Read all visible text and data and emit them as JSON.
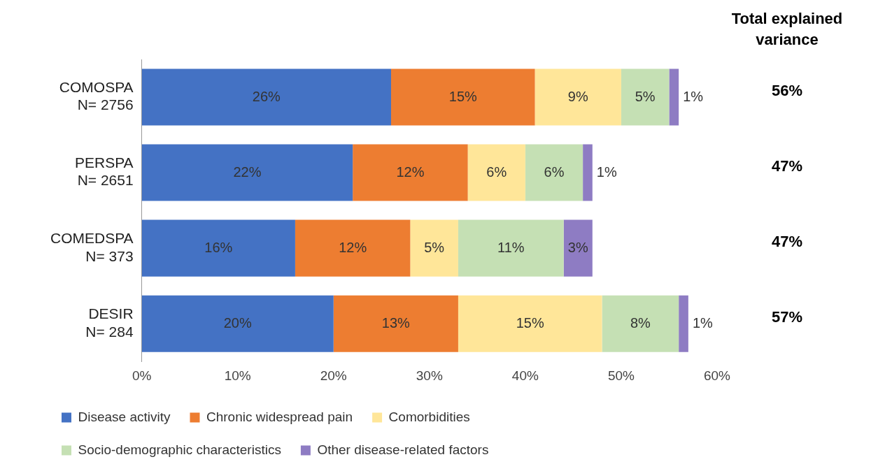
{
  "chart_data": {
    "type": "bar",
    "orientation": "horizontal",
    "stacked": true,
    "categories": [
      "COMOSPA\nN= 2756",
      "PERSPA\nN= 2651",
      "COMEDSPA\nN= 373",
      "DESIR\nN= 284"
    ],
    "series": [
      {
        "name": "Disease activity",
        "color": "#4472c4",
        "values": [
          26,
          22,
          16,
          20
        ],
        "value_labels": [
          "26%",
          "22%",
          "16%",
          "20%"
        ]
      },
      {
        "name": "Chronic widespread pain",
        "color": "#ed7d31",
        "values": [
          15,
          12,
          12,
          13
        ],
        "value_labels": [
          "15%",
          "12%",
          "12%",
          "13%"
        ]
      },
      {
        "name": "Comorbidities",
        "color": "#ffe699",
        "values": [
          9,
          6,
          5,
          15
        ],
        "value_labels": [
          "9%",
          "6%",
          "5%",
          "15%"
        ]
      },
      {
        "name": "Socio-demographic characteristics",
        "color": "#c5e0b4",
        "values": [
          5,
          6,
          11,
          8
        ],
        "value_labels": [
          "5%",
          "6%",
          "11%",
          "8%"
        ]
      },
      {
        "name": "Other disease-related factors",
        "color": "#8e7cc3",
        "values": [
          1,
          1,
          3,
          1
        ],
        "value_labels": [
          "1%",
          "1%",
          "3%",
          "1%"
        ]
      }
    ],
    "xlim": [
      0,
      60
    ],
    "xticks": [
      {
        "value": 0,
        "label": "0%"
      },
      {
        "value": 10,
        "label": "10%"
      },
      {
        "value": 20,
        "label": "20%"
      },
      {
        "value": 30,
        "label": "30%"
      },
      {
        "value": 40,
        "label": "40%"
      },
      {
        "value": 50,
        "label": "50%"
      },
      {
        "value": 60,
        "label": "60%"
      }
    ],
    "annotations": [
      "Total explained variance",
      "56%",
      "47%",
      "47%",
      "57%"
    ],
    "grid": false,
    "legend": "bottom"
  }
}
